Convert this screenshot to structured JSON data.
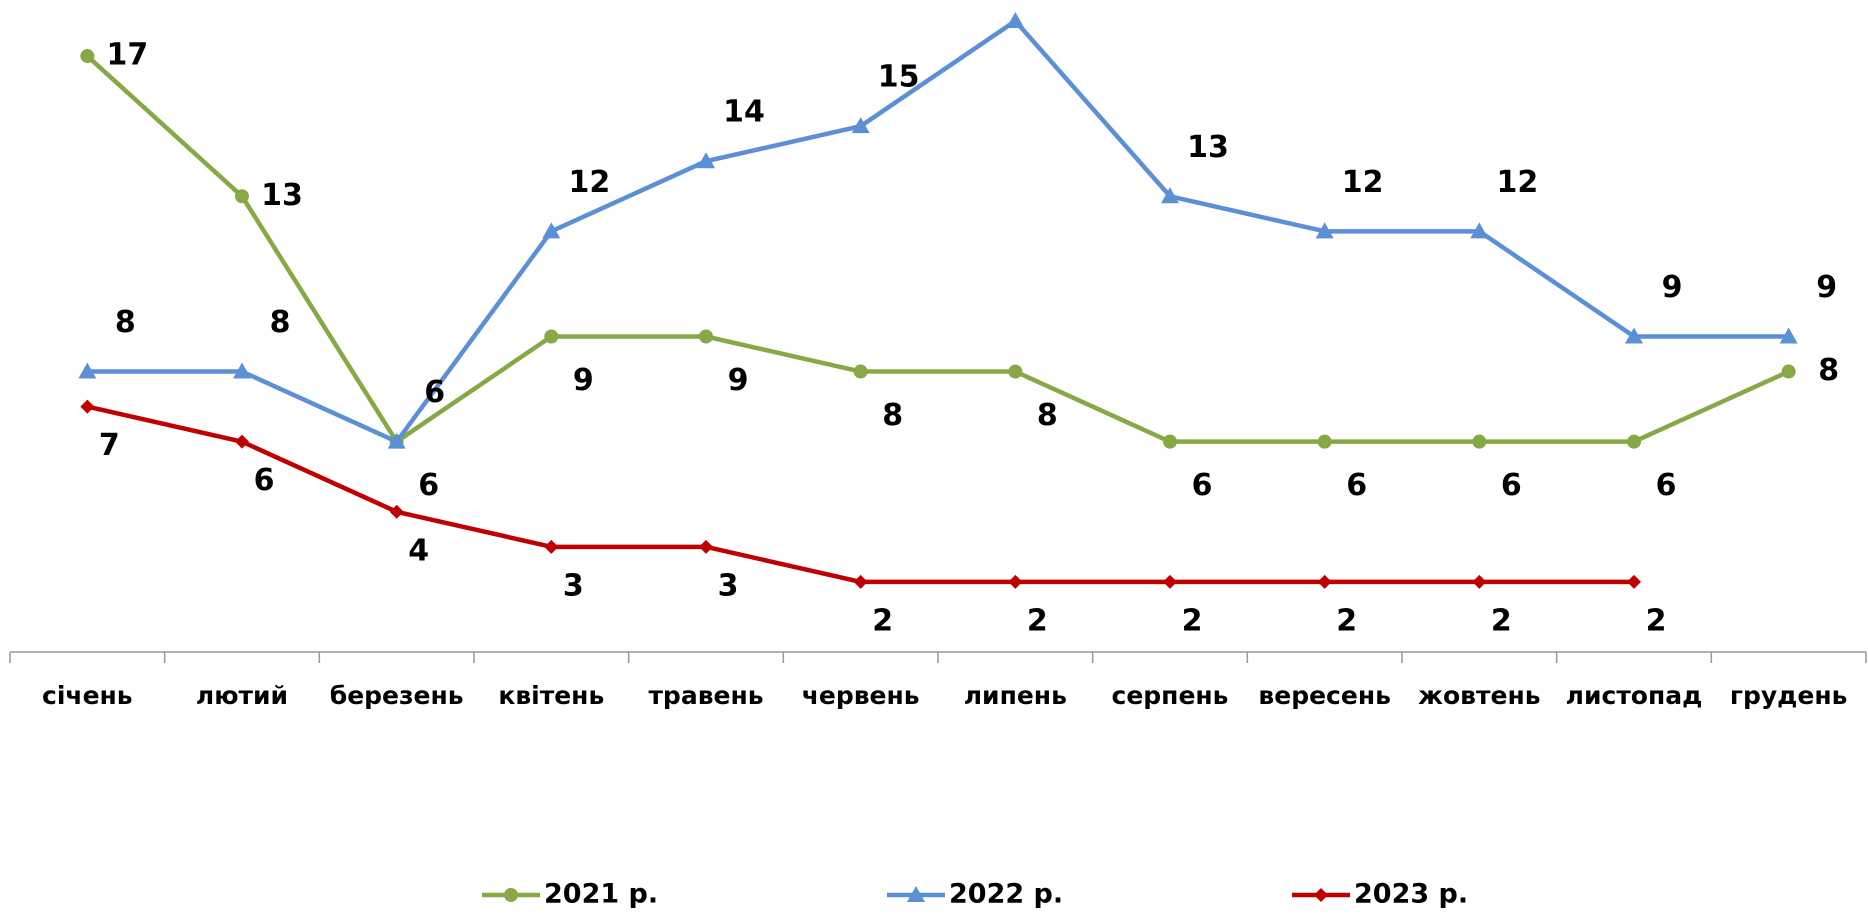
{
  "chart_data": {
    "type": "line",
    "categories": [
      "січень",
      "лютий",
      "березень",
      "квітень",
      "травень",
      "червень",
      "липень",
      "серпень",
      "вересень",
      "жовтень",
      "листопад",
      "грудень"
    ],
    "series": [
      {
        "name": "2021 р.",
        "color": "#86a845",
        "marker": "circle",
        "values": [
          17,
          13,
          6,
          9,
          9,
          8,
          8,
          6,
          6,
          6,
          6,
          8
        ]
      },
      {
        "name": "2022 р.",
        "color": "#5b8fd6",
        "marker": "triangle",
        "values": [
          8,
          8,
          6,
          12,
          14,
          15,
          18,
          13,
          12,
          12,
          9,
          9
        ]
      },
      {
        "name": "2023 р.",
        "color": "#c00000",
        "marker": "diamond",
        "values": [
          7,
          6,
          4,
          3,
          3,
          2,
          2,
          2,
          2,
          2,
          2,
          null
        ]
      }
    ],
    "ylim": [
      0,
      18
    ],
    "legend": "bottom"
  }
}
